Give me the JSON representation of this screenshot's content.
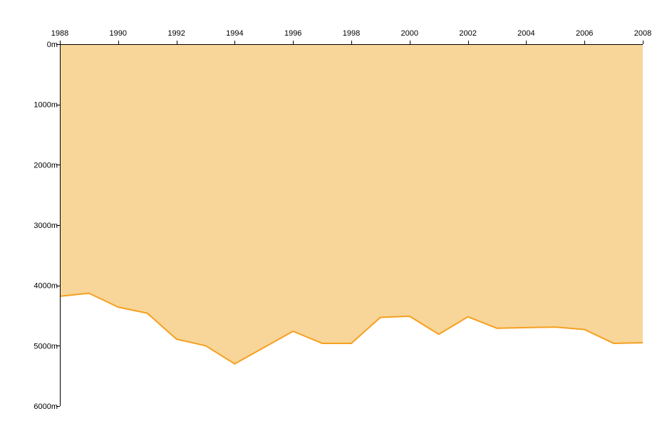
{
  "chart_data": {
    "type": "area",
    "title": "",
    "xlabel": "",
    "ylabel": "",
    "x_axis_position": "top",
    "y_inverted": true,
    "xlim": [
      1988,
      2008
    ],
    "ylim": [
      0,
      6000
    ],
    "x_ticks": [
      1988,
      1990,
      1992,
      1994,
      1996,
      1998,
      2000,
      2002,
      2004,
      2006,
      2008
    ],
    "x_tick_labels": [
      "1988",
      "1990",
      "1992",
      "1994",
      "1996",
      "1998",
      "2000",
      "2002",
      "2004",
      "2006",
      "2008"
    ],
    "y_ticks": [
      0,
      1000,
      2000,
      3000,
      4000,
      5000,
      6000
    ],
    "y_tick_labels": [
      "0m",
      "1000m",
      "2000m",
      "3000m",
      "4000m",
      "5000m",
      "6000m"
    ],
    "grid": false,
    "colors": {
      "fill": "#F8D598",
      "line": "#F5A020",
      "axis": "#000000"
    },
    "series": [
      {
        "x": [
          1988,
          1989,
          1990,
          1991,
          1992,
          1993,
          1994,
          1995,
          1996,
          1997,
          1998,
          1999,
          2000,
          2001,
          2002,
          2003,
          2004,
          2005,
          2006,
          2007,
          2008
        ],
        "values": [
          4180,
          4130,
          4360,
          4460,
          4890,
          5000,
          5300,
          5030,
          4760,
          4960,
          4960,
          4530,
          4510,
          4810,
          4520,
          4710,
          4700,
          4690,
          4730,
          4960,
          4950
        ]
      }
    ]
  }
}
